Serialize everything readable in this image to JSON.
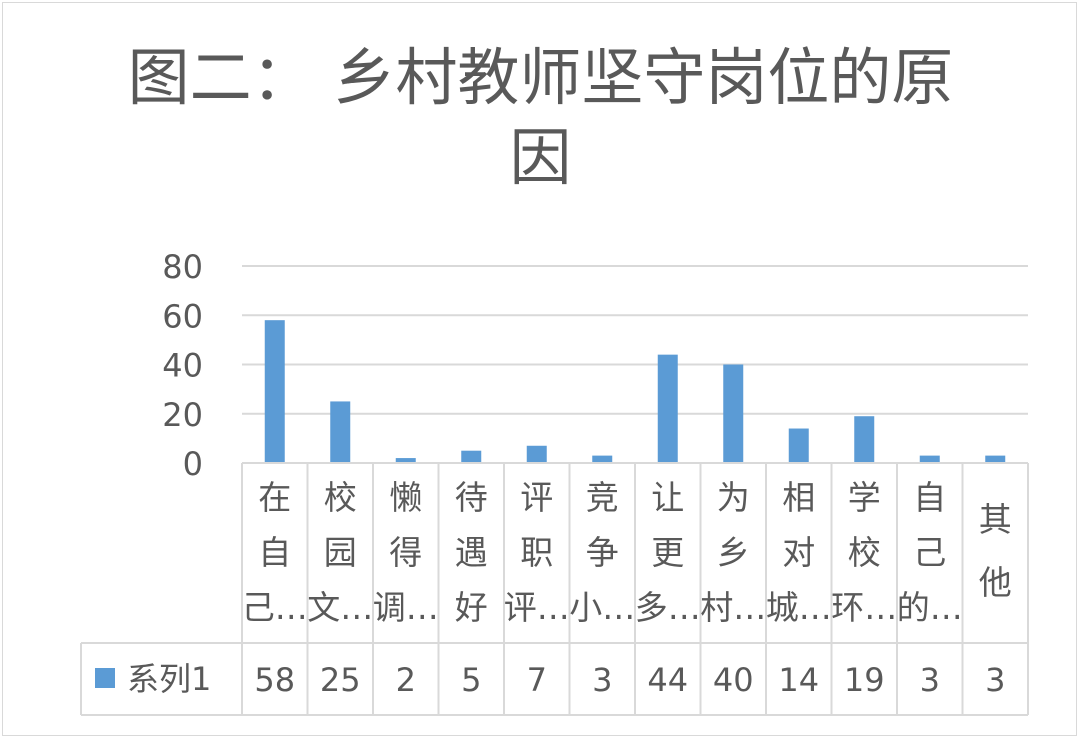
{
  "chart_data": {
    "type": "bar",
    "title": "图二：乡村教师坚守岗位的原因",
    "title_lines": [
      "图二： 乡村教师坚守岗位的原",
      "因"
    ],
    "categories": [
      "在自己…",
      "校园文…",
      "懒得调…",
      "待遇好",
      "评职评…",
      "竞争小…",
      "让更多…",
      "为乡村…",
      "相对城…",
      "学校环…",
      "自己的…",
      "其他"
    ],
    "series": [
      {
        "name": "系列1",
        "values": [
          58,
          25,
          2,
          5,
          7,
          3,
          44,
          40,
          14,
          19,
          3,
          3
        ]
      }
    ],
    "ylim": [
      0,
      80
    ],
    "yticks": [
      0,
      20,
      40,
      60,
      80
    ],
    "grid": true,
    "legend": "data-table",
    "colors": {
      "bar": "#5b9bd5",
      "grid": "#d9d9d9",
      "text": "#595959"
    }
  }
}
